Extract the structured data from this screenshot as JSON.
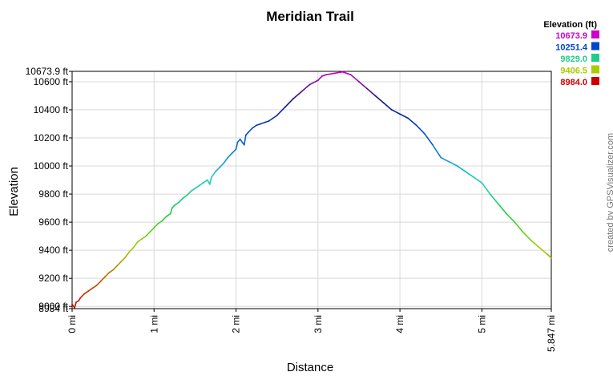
{
  "chart_data": {
    "type": "line",
    "title": "Meridian Trail",
    "xlabel": "Distance",
    "ylabel": "Elevation",
    "xlim": [
      0,
      5.847
    ],
    "ylim": [
      8984.0,
      10673.9
    ],
    "x_ticks": [
      {
        "value": 0,
        "label": "0 mi"
      },
      {
        "value": 1,
        "label": "1 mi"
      },
      {
        "value": 2,
        "label": "2 mi"
      },
      {
        "value": 3,
        "label": "3 mi"
      },
      {
        "value": 4,
        "label": "4 mi"
      },
      {
        "value": 5,
        "label": "5 mi"
      },
      {
        "value": 5.847,
        "label": "5.847 mi"
      }
    ],
    "y_ticks": [
      {
        "value": 8984.0,
        "label": "8984 ft"
      },
      {
        "value": 9000,
        "label": "9000 ft"
      },
      {
        "value": 9200,
        "label": "9200 ft"
      },
      {
        "value": 9400,
        "label": "9400 ft"
      },
      {
        "value": 9600,
        "label": "9600 ft"
      },
      {
        "value": 9800,
        "label": "9800 ft"
      },
      {
        "value": 10000,
        "label": "10000 ft"
      },
      {
        "value": 10200,
        "label": "10200 ft"
      },
      {
        "value": 10400,
        "label": "10400 ft"
      },
      {
        "value": 10600,
        "label": "10600 ft"
      },
      {
        "value": 10673.9,
        "label": "10673.9 ft"
      }
    ],
    "grid": true,
    "legend": {
      "title": "Elevation (ft)",
      "placement": "top-right",
      "entries": [
        {
          "label": "10673.9",
          "color": "#cc00cc"
        },
        {
          "label": "10251.4",
          "color": "#0044cc"
        },
        {
          "label": "9829.0",
          "color": "#22cc88"
        },
        {
          "label": "9406.5",
          "color": "#aacc00"
        },
        {
          "label": "8984.0",
          "color": "#cc0000"
        }
      ]
    },
    "series": [
      {
        "x": [
          0,
          0.03,
          0.05,
          0.08,
          0.1,
          0.15,
          0.2,
          0.25,
          0.3,
          0.35,
          0.4,
          0.45,
          0.5,
          0.55,
          0.6,
          0.65,
          0.7,
          0.75,
          0.8,
          0.85,
          0.9,
          0.95,
          1.0,
          1.05,
          1.1,
          1.15,
          1.2,
          1.22,
          1.25,
          1.3,
          1.35,
          1.4,
          1.45,
          1.5,
          1.55,
          1.6,
          1.65,
          1.68,
          1.7,
          1.75,
          1.8,
          1.85,
          1.9,
          1.95,
          2.0,
          2.02,
          2.05,
          2.1,
          2.12,
          2.15,
          2.2,
          2.25,
          2.3,
          2.35,
          2.4,
          2.45,
          2.5,
          2.6,
          2.7,
          2.8,
          2.9,
          3.0,
          3.05,
          3.1,
          3.2,
          3.3,
          3.4,
          3.5,
          3.6,
          3.7,
          3.8,
          3.9,
          4.0,
          4.1,
          4.2,
          4.3,
          4.4,
          4.5,
          4.6,
          4.7,
          4.8,
          4.9,
          5.0,
          5.1,
          5.2,
          5.3,
          5.4,
          5.5,
          5.6,
          5.7,
          5.8,
          5.847
        ],
        "y": [
          9015,
          8990,
          9030,
          9040,
          9060,
          9090,
          9110,
          9130,
          9150,
          9180,
          9210,
          9240,
          9260,
          9290,
          9320,
          9350,
          9390,
          9420,
          9460,
          9480,
          9500,
          9530,
          9560,
          9590,
          9610,
          9640,
          9660,
          9700,
          9720,
          9740,
          9770,
          9790,
          9820,
          9840,
          9860,
          9880,
          9900,
          9870,
          9920,
          9960,
          9990,
          10020,
          10060,
          10090,
          10120,
          10170,
          10190,
          10150,
          10220,
          10240,
          10270,
          10290,
          10300,
          10310,
          10320,
          10340,
          10360,
          10420,
          10480,
          10530,
          10580,
          10610,
          10640,
          10650,
          10660,
          10670,
          10650,
          10600,
          10550,
          10500,
          10450,
          10400,
          10370,
          10340,
          10290,
          10230,
          10150,
          10060,
          10030,
          10000,
          9960,
          9920,
          9880,
          9800,
          9730,
          9660,
          9600,
          9530,
          9470,
          9420,
          9370,
          9345
        ]
      }
    ]
  },
  "credit": "created by GPSVisualizer.com"
}
